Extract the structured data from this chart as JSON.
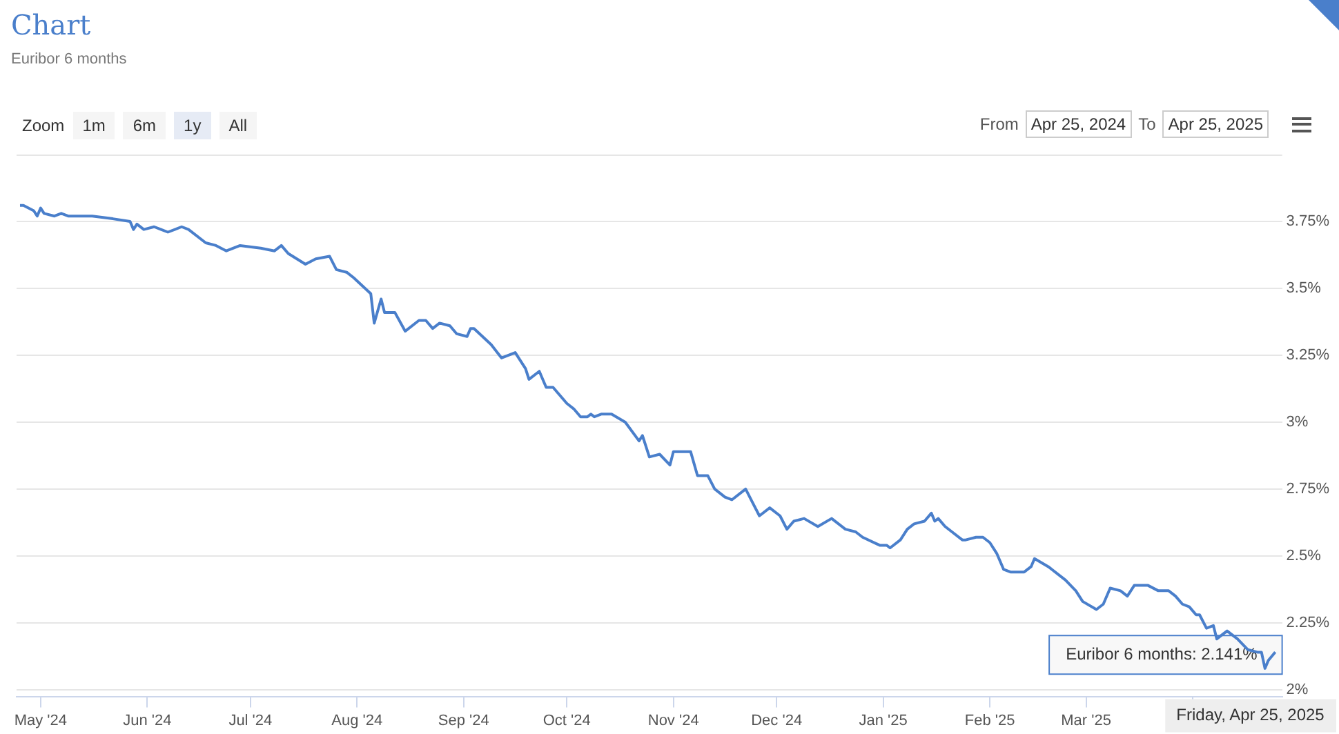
{
  "chart_data": {
    "type": "line",
    "title": "Chart",
    "subtitle": "Euribor 6 months",
    "x": [
      "2024-04-25",
      "2024-04-26",
      "2024-04-29",
      "2024-04-30",
      "2024-05-01",
      "2024-05-02",
      "2024-05-05",
      "2024-05-07",
      "2024-05-09",
      "2024-05-13",
      "2024-05-16",
      "2024-05-22",
      "2024-05-27",
      "2024-05-28",
      "2024-05-29",
      "2024-05-31",
      "2024-06-03",
      "2024-06-05",
      "2024-06-07",
      "2024-06-11",
      "2024-06-13",
      "2024-06-18",
      "2024-06-21",
      "2024-06-24",
      "2024-06-28",
      "2024-07-04",
      "2024-07-08",
      "2024-07-10",
      "2024-07-12",
      "2024-07-17",
      "2024-07-20",
      "2024-07-24",
      "2024-07-26",
      "2024-07-29",
      "2024-07-31",
      "2024-08-05",
      "2024-08-06",
      "2024-08-08",
      "2024-08-09",
      "2024-08-12",
      "2024-08-15",
      "2024-08-19",
      "2024-08-21",
      "2024-08-23",
      "2024-08-25",
      "2024-08-28",
      "2024-08-30",
      "2024-09-02",
      "2024-09-03",
      "2024-09-04",
      "2024-09-09",
      "2024-09-12",
      "2024-09-16",
      "2024-09-19",
      "2024-09-20",
      "2024-09-23",
      "2024-09-25",
      "2024-09-27",
      "2024-10-01",
      "2024-10-03",
      "2024-10-05",
      "2024-10-07",
      "2024-10-08",
      "2024-10-09",
      "2024-10-11",
      "2024-10-14",
      "2024-10-18",
      "2024-10-22",
      "2024-10-23",
      "2024-10-25",
      "2024-10-28",
      "2024-10-31",
      "2024-11-01",
      "2024-11-05",
      "2024-11-06",
      "2024-11-08",
      "2024-11-11",
      "2024-11-13",
      "2024-11-16",
      "2024-11-18",
      "2024-11-22",
      "2024-11-24",
      "2024-11-26",
      "2024-11-29",
      "2024-12-02",
      "2024-12-04",
      "2024-12-06",
      "2024-12-09",
      "2024-12-13",
      "2024-12-17",
      "2024-12-21",
      "2024-12-24",
      "2024-12-26",
      "2024-12-31",
      "2025-01-02",
      "2025-01-03",
      "2025-01-06",
      "2025-01-08",
      "2025-01-10",
      "2025-01-13",
      "2025-01-15",
      "2025-01-16",
      "2025-01-17",
      "2025-01-19",
      "2025-01-21",
      "2025-01-24",
      "2025-01-25",
      "2025-01-28",
      "2025-01-30",
      "2025-02-01",
      "2025-02-03",
      "2025-02-05",
      "2025-02-07",
      "2025-02-11",
      "2025-02-13",
      "2025-02-14",
      "2025-02-18",
      "2025-02-23",
      "2025-02-26",
      "2025-02-28",
      "2025-03-04",
      "2025-03-06",
      "2025-03-08",
      "2025-03-11",
      "2025-03-13",
      "2025-03-15",
      "2025-03-19",
      "2025-03-22",
      "2025-03-25",
      "2025-03-27",
      "2025-03-29",
      "2025-03-31",
      "2025-04-02",
      "2025-04-03",
      "2025-04-05",
      "2025-04-07",
      "2025-04-08",
      "2025-04-10",
      "2025-04-11",
      "2025-04-14",
      "2025-04-17",
      "2025-04-20",
      "2025-04-21",
      "2025-04-22",
      "2025-04-23",
      "2025-04-25"
    ],
    "series": [
      {
        "color": "#4a7fcb",
        "values": [
          3.81,
          3.81,
          3.79,
          3.77,
          3.8,
          3.78,
          3.77,
          3.78,
          3.77,
          3.77,
          3.77,
          3.76,
          3.75,
          3.72,
          3.74,
          3.72,
          3.73,
          3.72,
          3.71,
          3.73,
          3.72,
          3.67,
          3.66,
          3.64,
          3.66,
          3.65,
          3.64,
          3.66,
          3.63,
          3.59,
          3.61,
          3.62,
          3.57,
          3.56,
          3.54,
          3.48,
          3.37,
          3.46,
          3.41,
          3.41,
          3.34,
          3.38,
          3.38,
          3.35,
          3.37,
          3.36,
          3.33,
          3.32,
          3.35,
          3.35,
          3.29,
          3.24,
          3.26,
          3.2,
          3.16,
          3.19,
          3.13,
          3.13,
          3.07,
          3.05,
          3.02,
          3.02,
          3.03,
          3.02,
          3.03,
          3.03,
          3.0,
          2.93,
          2.95,
          2.87,
          2.88,
          2.84,
          2.89,
          2.89,
          2.89,
          2.8,
          2.8,
          2.75,
          2.72,
          2.71,
          2.75,
          2.7,
          2.65,
          2.68,
          2.65,
          2.6,
          2.63,
          2.64,
          2.61,
          2.64,
          2.6,
          2.59,
          2.57,
          2.54,
          2.54,
          2.53,
          2.56,
          2.6,
          2.62,
          2.63,
          2.66,
          2.63,
          2.64,
          2.61,
          2.59,
          2.56,
          2.56,
          2.57,
          2.57,
          2.55,
          2.51,
          2.45,
          2.44,
          2.44,
          2.46,
          2.49,
          2.46,
          2.41,
          2.37,
          2.33,
          2.3,
          2.32,
          2.38,
          2.37,
          2.35,
          2.39,
          2.39,
          2.37,
          2.37,
          2.35,
          2.32,
          2.31,
          2.28,
          2.28,
          2.23,
          2.24,
          2.19,
          2.21,
          2.22,
          2.19,
          2.15,
          2.14,
          2.14,
          2.08,
          2.11,
          2.141
        ]
      }
    ],
    "xlim": [
      "2024-04-24",
      "2025-04-27"
    ],
    "xticks": [
      {
        "value": "2024-05-01",
        "label": "May '24"
      },
      {
        "value": "2024-06-01",
        "label": "Jun '24"
      },
      {
        "value": "2024-07-01",
        "label": "Jul '24"
      },
      {
        "value": "2024-08-01",
        "label": "Aug '24"
      },
      {
        "value": "2024-09-01",
        "label": "Sep '24"
      },
      {
        "value": "2024-10-01",
        "label": "Oct '24"
      },
      {
        "value": "2024-11-01",
        "label": "Nov '24"
      },
      {
        "value": "2024-12-01",
        "label": "Dec '24"
      },
      {
        "value": "2025-01-01",
        "label": "Jan '25"
      },
      {
        "value": "2025-02-01",
        "label": "Feb '25"
      },
      {
        "value": "2025-03-01",
        "label": "Mar '25"
      },
      {
        "value": "2025-04-01",
        "label": null
      }
    ],
    "ylim": [
      1.975,
      4.0
    ],
    "yticks": [
      {
        "value": 2,
        "label": "2%"
      },
      {
        "value": 2.25,
        "label": "2.25%"
      },
      {
        "value": 2.5,
        "label": "2.5%"
      },
      {
        "value": 2.75,
        "label": "2.75%"
      },
      {
        "value": 3,
        "label": "3%"
      },
      {
        "value": 3.25,
        "label": "3.25%"
      },
      {
        "value": 3.5,
        "label": "3.5%"
      },
      {
        "value": 3.75,
        "label": "3.75%"
      }
    ],
    "grid": "y",
    "legend": false,
    "marker": "none",
    "line_style": "solid",
    "annotations": [
      "Zoom",
      "1m",
      "6m",
      "1y",
      "All",
      "From",
      "Apr 25, 2024",
      "To",
      "Apr 25, 2025",
      {
        "text": "Euribor 6 months: 2.141%",
        "x": "2025-04-25",
        "y": 2.141
      },
      "Friday, Apr 25, 2025"
    ]
  }
}
